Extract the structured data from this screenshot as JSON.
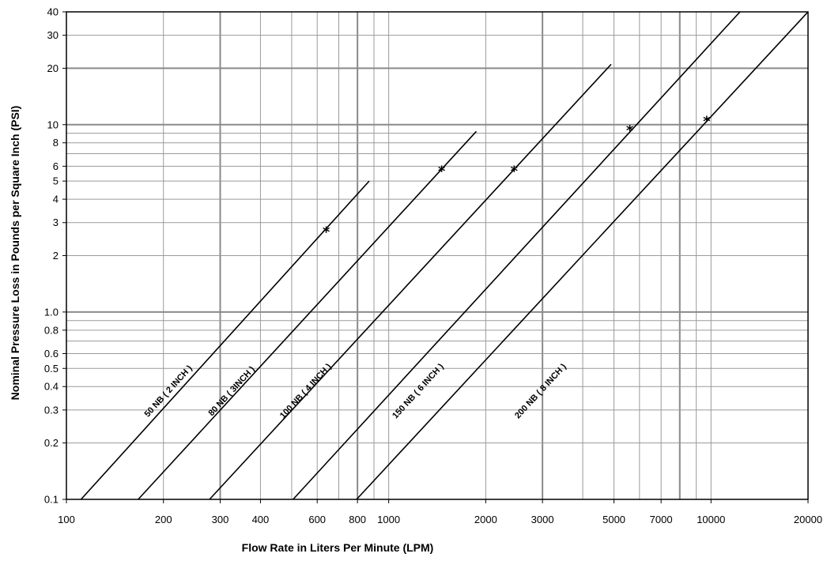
{
  "chart_data": {
    "type": "line",
    "title": "",
    "xlabel": "Flow Rate in Liters Per Minute (LPM)",
    "ylabel": "Nominal Pressure Loss in Pounds per Square Inch (PSI)",
    "x_scale": "log",
    "y_scale": "log",
    "xlim": [
      100,
      20000
    ],
    "ylim": [
      0.1,
      40
    ],
    "grid": true,
    "x_ticks": [
      100,
      200,
      300,
      400,
      600,
      800,
      1000,
      2000,
      3000,
      5000,
      7000,
      10000,
      20000
    ],
    "x_tick_labels": [
      "100",
      "200",
      "300",
      "400",
      "600",
      "800",
      "1000",
      "2000",
      "3000",
      "5000",
      "7000",
      "10000",
      "20000"
    ],
    "x_gridlines": [
      200,
      300,
      400,
      500,
      600,
      700,
      800,
      900,
      1000,
      2000,
      3000,
      4000,
      5000,
      6000,
      7000,
      8000,
      9000,
      10000
    ],
    "x_major_gridlines": [
      300,
      800,
      3000,
      8000
    ],
    "y_ticks": [
      0.1,
      0.2,
      0.3,
      0.4,
      0.5,
      0.6,
      0.8,
      1.0,
      2,
      3,
      4,
      5,
      6,
      8,
      10,
      20,
      30,
      40
    ],
    "y_tick_labels": [
      "0.1",
      "0.2",
      "0.3",
      "0.4",
      "0.5",
      "0.6",
      "0.8",
      "1.0",
      "2",
      "3",
      "4",
      "5",
      "6",
      "8",
      "10",
      "20",
      "30",
      "40"
    ],
    "y_gridlines": [
      0.2,
      0.3,
      0.4,
      0.5,
      0.6,
      0.7,
      0.8,
      0.9,
      1.0,
      2,
      3,
      4,
      5,
      6,
      7,
      8,
      9,
      10,
      20,
      30
    ],
    "y_major_gridlines": [
      1.0,
      10,
      20
    ],
    "series": [
      {
        "name": "50 NB ( 2 INCH )",
        "x": [
          111,
          870
        ],
        "y": [
          0.1,
          5.0
        ],
        "marker": {
          "x": 640,
          "y": 2.7
        },
        "label_pos": {
          "x": 210,
          "y": 0.37
        }
      },
      {
        "name": "80 NB ( 3INCH )",
        "x": [
          167,
          1870
        ],
        "y": [
          0.1,
          9.2
        ],
        "marker": {
          "x": 1460,
          "y": 5.7
        },
        "label_pos": {
          "x": 330,
          "y": 0.37
        }
      },
      {
        "name": "100 NB ( 4 INCH )",
        "x": [
          278,
          4900
        ],
        "y": [
          0.1,
          21.0
        ],
        "marker": {
          "x": 2450,
          "y": 5.7
        },
        "label_pos": {
          "x": 560,
          "y": 0.37
        }
      },
      {
        "name": "150 NB ( 6 INCH )",
        "x": [
          505,
          12300
        ],
        "y": [
          0.1,
          40
        ],
        "marker": {
          "x": 5600,
          "y": 9.4
        },
        "label_pos": {
          "x": 1250,
          "y": 0.37
        }
      },
      {
        "name": "200 NB ( 8 INCH )",
        "x": [
          795,
          20000
        ],
        "y": [
          0.1,
          40
        ],
        "marker": {
          "x": 9700,
          "y": 10.5
        },
        "label_pos": {
          "x": 3000,
          "y": 0.37
        }
      }
    ]
  }
}
